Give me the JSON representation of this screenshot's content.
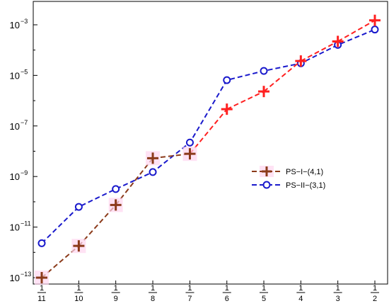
{
  "chart_data": {
    "type": "line",
    "title": "",
    "xlabel": "",
    "ylabel": "",
    "x_scale": "reciprocal",
    "y_scale": "log",
    "x_ticks": [
      {
        "num": "1",
        "den": "11",
        "value": 0.0909
      },
      {
        "num": "1",
        "den": "10",
        "value": 0.1
      },
      {
        "num": "1",
        "den": "9",
        "value": 0.1111
      },
      {
        "num": "1",
        "den": "8",
        "value": 0.125
      },
      {
        "num": "1",
        "den": "7",
        "value": 0.1429
      },
      {
        "num": "1",
        "den": "6",
        "value": 0.1667
      },
      {
        "num": "1",
        "den": "5",
        "value": 0.2
      },
      {
        "num": "1",
        "den": "4",
        "value": 0.25
      },
      {
        "num": "1",
        "den": "3",
        "value": 0.3333
      },
      {
        "num": "1",
        "den": "2",
        "value": 0.5
      }
    ],
    "y_ticks": [
      {
        "base": "10",
        "exp": "−13",
        "value": 1e-13
      },
      {
        "base": "10",
        "exp": "−11",
        "value": 1e-11
      },
      {
        "base": "10",
        "exp": "−9",
        "value": 1e-09
      },
      {
        "base": "10",
        "exp": "−7",
        "value": 1e-07
      },
      {
        "base": "10",
        "exp": "−5",
        "value": 1e-05
      },
      {
        "base": "10",
        "exp": "−3",
        "value": 0.001
      }
    ],
    "ylim": [
      5e-14,
      0.003
    ],
    "grid": false,
    "legend_position": "right-middle",
    "series": [
      {
        "name": "PS−I−(4,1)",
        "marker": "plus",
        "points": [
          {
            "x": 0.0909,
            "y": 1e-13,
            "color": "#8b3a1a"
          },
          {
            "x": 0.1,
            "y": 1.8e-12,
            "color": "#8b3a1a"
          },
          {
            "x": 0.1111,
            "y": 7.5e-11,
            "color": "#8b3a1a"
          },
          {
            "x": 0.125,
            "y": 5.3e-09,
            "color": "#8b3a1a"
          },
          {
            "x": 0.1429,
            "y": 7.9e-09,
            "color": "#8b3a1a"
          },
          {
            "x": 0.1667,
            "y": 4.6e-07,
            "color": "#ff2020"
          },
          {
            "x": 0.2,
            "y": 2.3e-06,
            "color": "#ff2020"
          },
          {
            "x": 0.25,
            "y": 3.7e-05,
            "color": "#ff2020"
          },
          {
            "x": 0.3333,
            "y": 0.00022,
            "color": "#ff2020"
          },
          {
            "x": 0.5,
            "y": 0.0015,
            "color": "#ff2020"
          }
        ]
      },
      {
        "name": "PS−II−(3,1)",
        "marker": "circle",
        "color": "#1a1acc",
        "points": [
          {
            "x": 0.0909,
            "y": 2.3e-12
          },
          {
            "x": 0.1,
            "y": 6.3e-11
          },
          {
            "x": 0.1111,
            "y": 3.2e-10
          },
          {
            "x": 0.125,
            "y": 1.5e-09
          },
          {
            "x": 0.1429,
            "y": 2.2e-08
          },
          {
            "x": 0.1667,
            "y": 6.5e-06
          },
          {
            "x": 0.2,
            "y": 1.5e-05
          },
          {
            "x": 0.25,
            "y": 3e-05
          },
          {
            "x": 0.3333,
            "y": 0.00016
          },
          {
            "x": 0.5,
            "y": 0.00065
          }
        ]
      }
    ],
    "segment_colors": {
      "dark": "#8b3a1a",
      "red": "#ff2020"
    }
  }
}
